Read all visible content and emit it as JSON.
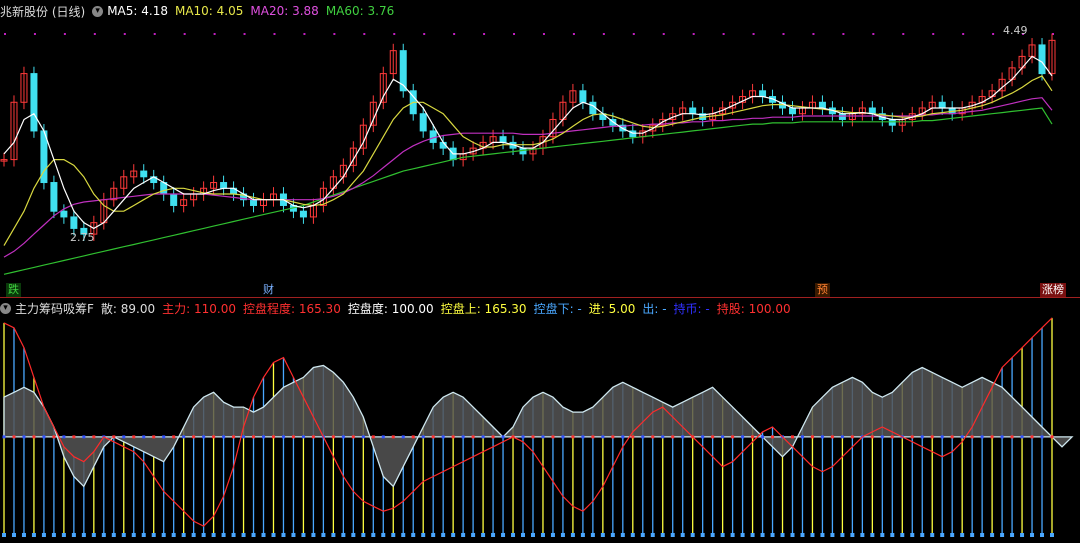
{
  "top_header": {
    "stock_title": "兆新股份 (日线)",
    "ma": [
      {
        "label": "MA5: 4.18",
        "color": "#ffffff"
      },
      {
        "label": "MA10: 4.05",
        "color": "#e8e84a"
      },
      {
        "label": "MA20: 3.88",
        "color": "#e050e0"
      },
      {
        "label": "MA60: 3.76",
        "color": "#40d040"
      }
    ]
  },
  "bottom_header": {
    "indicator_title": "主力筹码吸筹F",
    "items": [
      {
        "label": "散: 89.00",
        "color": "#dddddd"
      },
      {
        "label": "主力: 110.00",
        "color": "#ff3030"
      },
      {
        "label": "控盘程度: 165.30",
        "color": "#ff3030"
      },
      {
        "label": "控盘度: 100.00",
        "color": "#ffffff"
      },
      {
        "label": "控盘上: 165.30",
        "color": "#ffff40"
      },
      {
        "label": "控盘下: -",
        "color": "#4aa8ff"
      },
      {
        "label": "进: 5.00",
        "color": "#ffff40"
      },
      {
        "label": "出: -",
        "color": "#4aa8ff"
      },
      {
        "label": "持币: -",
        "color": "#3030ff"
      },
      {
        "label": "持股: 100.00",
        "color": "#ff3030"
      }
    ]
  },
  "tags": [
    {
      "text": "跌",
      "color": "#40d040",
      "bg": "#0a3a0a"
    },
    {
      "text": "财",
      "color": "#7ab0ff",
      "bg": "#000000"
    },
    {
      "text": "预",
      "color": "#ff8030",
      "bg": "#3a1a00"
    },
    {
      "text": "涨榜",
      "color": "#ffffff",
      "bg": "#7a1010"
    }
  ],
  "annotations": {
    "high": "4.49",
    "low": "2.75"
  },
  "chart_data": {
    "type": "candlestick",
    "ylim": [
      2.4,
      4.65
    ],
    "n_bars": 106,
    "closes": [
      3.45,
      3.95,
      4.2,
      3.7,
      3.25,
      3.0,
      2.95,
      2.85,
      2.8,
      2.9,
      3.1,
      3.2,
      3.3,
      3.35,
      3.3,
      3.25,
      3.15,
      3.05,
      3.1,
      3.15,
      3.2,
      3.25,
      3.2,
      3.15,
      3.1,
      3.05,
      3.1,
      3.15,
      3.05,
      3.0,
      2.95,
      3.05,
      3.2,
      3.3,
      3.4,
      3.55,
      3.75,
      3.95,
      4.2,
      4.4,
      4.05,
      3.85,
      3.7,
      3.6,
      3.55,
      3.45,
      3.5,
      3.55,
      3.6,
      3.65,
      3.6,
      3.55,
      3.5,
      3.55,
      3.65,
      3.8,
      3.95,
      4.05,
      3.95,
      3.85,
      3.8,
      3.75,
      3.7,
      3.65,
      3.7,
      3.75,
      3.8,
      3.85,
      3.9,
      3.85,
      3.8,
      3.85,
      3.9,
      3.95,
      4.0,
      4.05,
      4.0,
      3.95,
      3.9,
      3.85,
      3.9,
      3.95,
      3.9,
      3.85,
      3.8,
      3.85,
      3.9,
      3.85,
      3.8,
      3.75,
      3.8,
      3.85,
      3.9,
      3.95,
      3.9,
      3.85,
      3.9,
      3.95,
      4.0,
      4.05,
      4.15,
      4.25,
      4.35,
      4.45,
      4.2,
      4.49
    ],
    "ma5": [
      3.5,
      3.6,
      3.8,
      3.85,
      3.7,
      3.45,
      3.2,
      3.0,
      2.9,
      2.85,
      2.9,
      3.0,
      3.1,
      3.2,
      3.25,
      3.3,
      3.25,
      3.2,
      3.15,
      3.15,
      3.15,
      3.18,
      3.2,
      3.2,
      3.15,
      3.1,
      3.1,
      3.1,
      3.1,
      3.05,
      3.03,
      3.05,
      3.1,
      3.2,
      3.3,
      3.45,
      3.6,
      3.8,
      4.0,
      4.15,
      4.1,
      4.0,
      3.9,
      3.75,
      3.6,
      3.5,
      3.5,
      3.52,
      3.55,
      3.6,
      3.6,
      3.58,
      3.55,
      3.55,
      3.6,
      3.7,
      3.8,
      3.9,
      3.95,
      3.92,
      3.85,
      3.78,
      3.72,
      3.68,
      3.68,
      3.72,
      3.78,
      3.82,
      3.85,
      3.85,
      3.84,
      3.85,
      3.88,
      3.92,
      3.96,
      4.0,
      4.0,
      3.98,
      3.94,
      3.9,
      3.9,
      3.9,
      3.9,
      3.88,
      3.85,
      3.85,
      3.86,
      3.85,
      3.82,
      3.8,
      3.8,
      3.82,
      3.85,
      3.9,
      3.9,
      3.9,
      3.9,
      3.92,
      3.95,
      4.0,
      4.08,
      4.15,
      4.25,
      4.35,
      4.3,
      4.18
    ],
    "ma10": [
      2.7,
      2.85,
      3.0,
      3.2,
      3.35,
      3.45,
      3.45,
      3.4,
      3.3,
      3.15,
      3.05,
      3.0,
      3.0,
      3.05,
      3.1,
      3.15,
      3.18,
      3.2,
      3.2,
      3.18,
      3.16,
      3.15,
      3.15,
      3.15,
      3.14,
      3.12,
      3.1,
      3.1,
      3.1,
      3.08,
      3.06,
      3.05,
      3.06,
      3.1,
      3.15,
      3.25,
      3.35,
      3.5,
      3.65,
      3.8,
      3.9,
      3.95,
      3.95,
      3.9,
      3.85,
      3.75,
      3.65,
      3.6,
      3.56,
      3.56,
      3.58,
      3.58,
      3.58,
      3.58,
      3.6,
      3.63,
      3.68,
      3.74,
      3.8,
      3.84,
      3.85,
      3.83,
      3.8,
      3.77,
      3.74,
      3.73,
      3.74,
      3.76,
      3.78,
      3.8,
      3.82,
      3.83,
      3.84,
      3.86,
      3.88,
      3.9,
      3.92,
      3.93,
      3.93,
      3.92,
      3.91,
      3.9,
      3.89,
      3.88,
      3.87,
      3.86,
      3.86,
      3.85,
      3.84,
      3.83,
      3.82,
      3.82,
      3.83,
      3.85,
      3.86,
      3.87,
      3.88,
      3.9,
      3.92,
      3.95,
      3.99,
      4.03,
      4.08,
      4.14,
      4.18,
      4.05
    ],
    "ma20": [
      2.6,
      2.65,
      2.72,
      2.8,
      2.88,
      2.96,
      3.02,
      3.06,
      3.08,
      3.09,
      3.1,
      3.11,
      3.12,
      3.13,
      3.14,
      3.15,
      3.15,
      3.15,
      3.15,
      3.15,
      3.15,
      3.14,
      3.13,
      3.12,
      3.11,
      3.1,
      3.1,
      3.1,
      3.1,
      3.1,
      3.1,
      3.1,
      3.11,
      3.13,
      3.16,
      3.2,
      3.25,
      3.31,
      3.38,
      3.45,
      3.52,
      3.57,
      3.61,
      3.64,
      3.66,
      3.67,
      3.68,
      3.68,
      3.68,
      3.68,
      3.68,
      3.68,
      3.67,
      3.67,
      3.67,
      3.68,
      3.69,
      3.7,
      3.71,
      3.72,
      3.73,
      3.74,
      3.74,
      3.75,
      3.75,
      3.76,
      3.76,
      3.77,
      3.77,
      3.78,
      3.78,
      3.79,
      3.79,
      3.8,
      3.8,
      3.81,
      3.81,
      3.82,
      3.82,
      3.82,
      3.83,
      3.83,
      3.83,
      3.83,
      3.83,
      3.83,
      3.83,
      3.83,
      3.83,
      3.83,
      3.83,
      3.83,
      3.84,
      3.84,
      3.85,
      3.85,
      3.86,
      3.87,
      3.88,
      3.9,
      3.92,
      3.94,
      3.96,
      3.98,
      3.99,
      3.88
    ],
    "ma60": [
      2.45,
      2.47,
      2.49,
      2.51,
      2.53,
      2.55,
      2.57,
      2.59,
      2.61,
      2.63,
      2.65,
      2.67,
      2.69,
      2.71,
      2.73,
      2.75,
      2.77,
      2.79,
      2.81,
      2.83,
      2.85,
      2.87,
      2.89,
      2.91,
      2.93,
      2.95,
      2.97,
      2.99,
      3.01,
      3.03,
      3.05,
      3.08,
      3.11,
      3.14,
      3.17,
      3.2,
      3.23,
      3.26,
      3.29,
      3.32,
      3.35,
      3.37,
      3.39,
      3.41,
      3.43,
      3.45,
      3.47,
      3.48,
      3.49,
      3.5,
      3.51,
      3.52,
      3.53,
      3.54,
      3.55,
      3.56,
      3.57,
      3.58,
      3.59,
      3.6,
      3.61,
      3.62,
      3.63,
      3.64,
      3.65,
      3.66,
      3.67,
      3.68,
      3.69,
      3.7,
      3.71,
      3.72,
      3.73,
      3.74,
      3.75,
      3.76,
      3.76,
      3.77,
      3.77,
      3.77,
      3.78,
      3.78,
      3.78,
      3.78,
      3.78,
      3.78,
      3.78,
      3.78,
      3.78,
      3.78,
      3.78,
      3.78,
      3.79,
      3.79,
      3.8,
      3.81,
      3.82,
      3.83,
      3.84,
      3.85,
      3.86,
      3.87,
      3.88,
      3.89,
      3.9,
      3.76
    ],
    "indicator": {
      "ylim": [
        -100,
        130
      ],
      "gray_area": [
        40,
        45,
        50,
        45,
        30,
        10,
        -20,
        -40,
        -50,
        -30,
        -10,
        0,
        -5,
        -10,
        -15,
        -20,
        -25,
        -10,
        10,
        30,
        40,
        45,
        35,
        30,
        30,
        25,
        30,
        40,
        50,
        55,
        60,
        70,
        72,
        65,
        55,
        40,
        20,
        -10,
        -40,
        -50,
        -30,
        -10,
        10,
        30,
        40,
        45,
        40,
        30,
        20,
        10,
        0,
        10,
        30,
        40,
        45,
        40,
        30,
        25,
        25,
        30,
        40,
        50,
        55,
        50,
        45,
        40,
        35,
        30,
        35,
        40,
        45,
        50,
        40,
        30,
        20,
        10,
        0,
        -10,
        -20,
        -10,
        10,
        30,
        40,
        50,
        55,
        60,
        55,
        45,
        40,
        45,
        55,
        65,
        70,
        65,
        60,
        55,
        50,
        55,
        60,
        55,
        50,
        40,
        30,
        20,
        10,
        0,
        -10,
        0
      ],
      "red_line": [
        115,
        110,
        90,
        60,
        30,
        10,
        -10,
        -20,
        -25,
        -15,
        0,
        -5,
        -10,
        -15,
        -25,
        -40,
        -55,
        -65,
        -75,
        -85,
        -90,
        -80,
        -60,
        -30,
        10,
        40,
        60,
        75,
        80,
        60,
        40,
        20,
        0,
        -20,
        -40,
        -55,
        -65,
        -70,
        -75,
        -72,
        -65,
        -55,
        -45,
        -40,
        -35,
        -30,
        -25,
        -20,
        -15,
        -10,
        -5,
        0,
        -5,
        -15,
        -30,
        -45,
        -60,
        -70,
        -75,
        -65,
        -50,
        -30,
        -10,
        5,
        15,
        25,
        30,
        20,
        10,
        0,
        -10,
        -20,
        -30,
        -25,
        -15,
        -5,
        5,
        10,
        0,
        -10,
        -20,
        -30,
        -35,
        -30,
        -20,
        -10,
        0,
        5,
        10,
        5,
        0,
        -5,
        -10,
        -15,
        -20,
        -15,
        -5,
        10,
        30,
        50,
        70,
        80,
        90,
        100,
        110,
        120
      ]
    }
  }
}
